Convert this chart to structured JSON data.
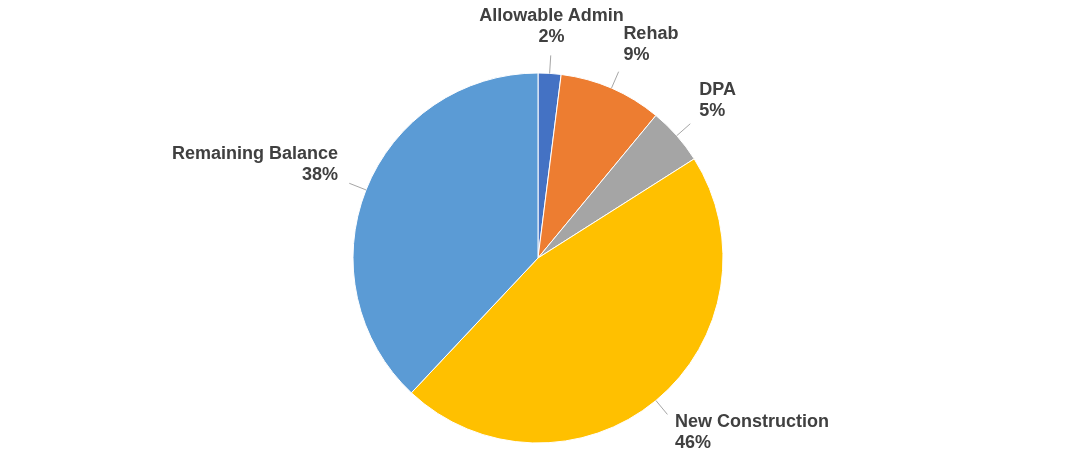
{
  "chart_data": {
    "type": "pie",
    "categories": [
      "Allowable Admin",
      "Rehab",
      "DPA",
      "New Construction",
      "Remaining Balance"
    ],
    "values": [
      2,
      9,
      5,
      46,
      38
    ],
    "colors": [
      "#4472c4",
      "#ed7d31",
      "#a5a5a5",
      "#ffc000",
      "#5b9bd5"
    ],
    "value_labels": [
      "2%",
      "9%",
      "5%",
      "46%",
      "38%"
    ]
  }
}
